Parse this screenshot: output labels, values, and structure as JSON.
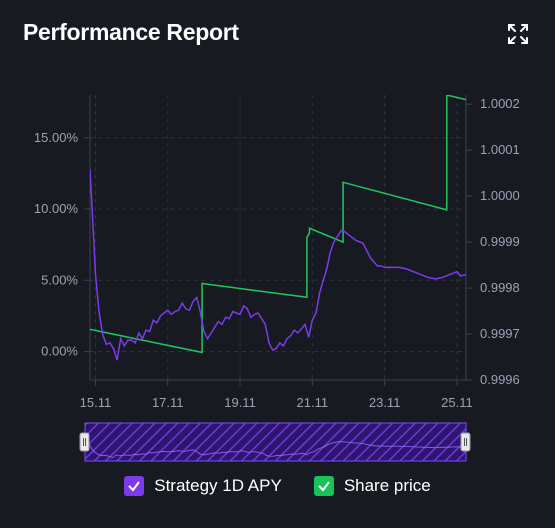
{
  "header": {
    "title": "Performance Report",
    "expand_icon": "expand-icon"
  },
  "colors": {
    "background": "#171a21",
    "strategy": "#7c3aed",
    "share_price": "#22c55e",
    "checkbox_strategy": "#7c3aed",
    "checkbox_share": "#16c45a",
    "navigator_fill": "#3b1b8c"
  },
  "legend": [
    {
      "label": "Strategy 1D APY",
      "checked": true,
      "color": "#7c3aed"
    },
    {
      "label": "Share price",
      "checked": true,
      "color": "#16c45a"
    }
  ],
  "chart_data": {
    "type": "line",
    "title": "Performance Report",
    "x_ticks": [
      {
        "label": "15.11",
        "x": 15
      },
      {
        "label": "17.11",
        "x": 17
      },
      {
        "label": "19.11",
        "x": 19
      },
      {
        "label": "21.11",
        "x": 21
      },
      {
        "label": "23.11",
        "x": 23
      },
      {
        "label": "25.11",
        "x": 25
      }
    ],
    "xlim": [
      14.85,
      25.25
    ],
    "y_left": {
      "ticks": [
        "0.00%",
        "5.00%",
        "10.00%",
        "15.00%"
      ],
      "tick_values": [
        0,
        5,
        10,
        15
      ],
      "ylim": [
        -2,
        18
      ]
    },
    "y_right": {
      "ticks": [
        "0.9996",
        "0.9997",
        "0.9998",
        "0.9999",
        "1.0000",
        "1.0001",
        "1.0002"
      ],
      "tick_values": [
        0.9996,
        0.9997,
        0.9998,
        0.9999,
        1.0,
        1.0001,
        1.0002
      ],
      "ylim": [
        0.9996,
        1.00022
      ]
    },
    "grid": true,
    "legend_position": "bottom",
    "series": [
      {
        "name": "Strategy 1D APY",
        "axis": "left",
        "color": "#7c3aed",
        "x": [
          14.85,
          14.9,
          15.0,
          15.1,
          15.2,
          15.3,
          15.4,
          15.5,
          15.6,
          15.7,
          15.8,
          15.9,
          16.0,
          16.1,
          16.2,
          16.3,
          16.4,
          16.5,
          16.6,
          16.7,
          16.8,
          16.9,
          17.0,
          17.1,
          17.2,
          17.3,
          17.4,
          17.5,
          17.6,
          17.7,
          17.8,
          17.9,
          18.0,
          18.1,
          18.2,
          18.3,
          18.4,
          18.5,
          18.6,
          18.7,
          18.8,
          18.9,
          19.0,
          19.1,
          19.2,
          19.3,
          19.4,
          19.5,
          19.6,
          19.7,
          19.8,
          19.9,
          20.0,
          20.1,
          20.2,
          20.3,
          20.4,
          20.5,
          20.6,
          20.7,
          20.8,
          20.9,
          21.0,
          21.1,
          21.2,
          21.3,
          21.4,
          21.5,
          21.6,
          21.7,
          21.8,
          21.9,
          22.0,
          22.2,
          22.4,
          22.6,
          22.7,
          22.8,
          22.9,
          23.0,
          23.2,
          23.4,
          23.6,
          23.8,
          24.0,
          24.2,
          24.4,
          24.6,
          24.8,
          25.0,
          25.1,
          25.25
        ],
        "values": [
          12.8,
          10.5,
          5.5,
          2.8,
          1.2,
          0.5,
          0.6,
          0.2,
          -0.6,
          0.9,
          0.4,
          0.8,
          0.8,
          0.6,
          1.3,
          0.9,
          1.5,
          1.4,
          2.2,
          2.0,
          2.5,
          2.7,
          2.9,
          2.6,
          2.8,
          2.9,
          3.4,
          3.0,
          2.9,
          3.5,
          3.8,
          2.8,
          1.4,
          0.9,
          1.3,
          1.7,
          2.1,
          1.9,
          2.4,
          2.3,
          2.8,
          2.7,
          2.6,
          3.2,
          3.0,
          2.4,
          2.6,
          2.7,
          2.3,
          1.9,
          0.6,
          0.1,
          0.2,
          0.6,
          0.4,
          0.9,
          1.1,
          1.5,
          1.3,
          1.6,
          1.9,
          1.0,
          2.2,
          2.7,
          4.1,
          5.0,
          5.8,
          7.0,
          7.7,
          8.1,
          8.5,
          8.4,
          8.2,
          7.8,
          7.6,
          6.6,
          6.3,
          6.0,
          6.0,
          5.9,
          5.9,
          5.9,
          5.8,
          5.6,
          5.4,
          5.2,
          5.1,
          5.2,
          5.4,
          5.6,
          5.3,
          5.4
        ]
      },
      {
        "name": "Share price",
        "axis": "right",
        "color": "#22c55e",
        "x": [
          14.85,
          17.95,
          17.95,
          20.85,
          20.85,
          20.92,
          20.92,
          21.85,
          21.85,
          24.72,
          24.72,
          25.25
        ],
        "values": [
          0.99971,
          0.99966,
          0.99981,
          0.99978,
          0.99991,
          0.99992,
          0.99993,
          0.9999,
          1.00003,
          0.99997,
          1.00022,
          1.00021
        ]
      }
    ]
  }
}
